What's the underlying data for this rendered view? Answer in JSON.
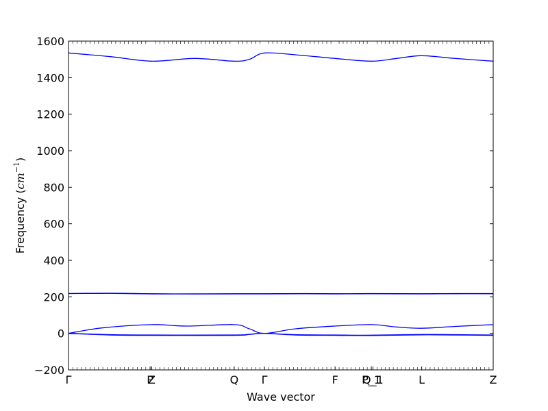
{
  "chart_data": {
    "type": "line",
    "xlabel": "Wave vector",
    "ylabel": "Frequency",
    "ylabel_unit_base": "cm",
    "ylabel_unit_exp": "−1",
    "ylim": [
      -200,
      1600
    ],
    "yticks": [
      -200,
      0,
      200,
      400,
      600,
      800,
      1000,
      1200,
      1400,
      1600
    ],
    "xlim": [
      0,
      5.05
    ],
    "xticks": [
      {
        "x": 0.0,
        "label": "Γ"
      },
      {
        "x": 0.97,
        "label": "P"
      },
      {
        "x": 0.99,
        "label": "Z"
      },
      {
        "x": 1.97,
        "label": "Q"
      },
      {
        "x": 2.33,
        "label": "Γ"
      },
      {
        "x": 3.17,
        "label": "F"
      },
      {
        "x": 3.6,
        "label": "P_1"
      },
      {
        "x": 3.62,
        "label": "Q_1"
      },
      {
        "x": 4.2,
        "label": "L"
      },
      {
        "x": 5.05,
        "label": "Z"
      }
    ],
    "series": [
      {
        "values": [
          [
            0,
            1535
          ],
          [
            0.5,
            1515
          ],
          [
            0.99,
            1490
          ],
          [
            1.5,
            1505
          ],
          [
            1.97,
            1490
          ],
          [
            2.15,
            1500
          ],
          [
            2.33,
            1535
          ],
          [
            2.7,
            1525
          ],
          [
            3.17,
            1505
          ],
          [
            3.6,
            1490
          ],
          [
            3.9,
            1505
          ],
          [
            4.2,
            1520
          ],
          [
            4.6,
            1505
          ],
          [
            5.05,
            1490
          ]
        ]
      },
      {
        "values": [
          [
            0,
            218
          ],
          [
            0.5,
            220
          ],
          [
            1.0,
            217
          ],
          [
            1.5,
            216
          ],
          [
            1.97,
            217
          ],
          [
            2.33,
            217
          ],
          [
            2.8,
            218
          ],
          [
            3.17,
            217
          ],
          [
            3.6,
            218
          ],
          [
            4.2,
            217
          ],
          [
            4.6,
            218
          ],
          [
            5.05,
            218
          ]
        ]
      },
      {
        "values": [
          [
            0,
            218
          ],
          [
            0.5,
            219
          ],
          [
            1.0,
            216
          ],
          [
            1.5,
            216
          ],
          [
            1.97,
            216
          ],
          [
            2.33,
            216
          ],
          [
            2.8,
            217
          ],
          [
            3.17,
            216
          ],
          [
            3.6,
            217
          ],
          [
            4.2,
            216
          ],
          [
            4.6,
            217
          ],
          [
            5.05,
            217
          ]
        ]
      },
      {
        "values": [
          [
            0,
            0
          ],
          [
            0.4,
            30
          ],
          [
            0.99,
            48
          ],
          [
            1.4,
            40
          ],
          [
            1.97,
            48
          ],
          [
            2.15,
            25
          ],
          [
            2.33,
            0
          ],
          [
            2.7,
            25
          ],
          [
            3.17,
            40
          ],
          [
            3.6,
            48
          ],
          [
            3.9,
            35
          ],
          [
            4.2,
            28
          ],
          [
            4.6,
            38
          ],
          [
            5.05,
            48
          ]
        ]
      },
      {
        "values": [
          [
            0,
            0
          ],
          [
            0.5,
            -7
          ],
          [
            1.0,
            -9
          ],
          [
            1.97,
            -9
          ],
          [
            2.15,
            -5
          ],
          [
            2.33,
            0
          ],
          [
            2.7,
            -7
          ],
          [
            3.17,
            -9
          ],
          [
            3.6,
            -10
          ],
          [
            4.2,
            -6
          ],
          [
            4.6,
            -7
          ],
          [
            5.05,
            -9
          ]
        ]
      },
      {
        "values": [
          [
            0,
            0
          ],
          [
            0.5,
            -9
          ],
          [
            1.0,
            -11
          ],
          [
            1.97,
            -11
          ],
          [
            2.15,
            -6
          ],
          [
            2.33,
            0
          ],
          [
            2.7,
            -9
          ],
          [
            3.17,
            -11
          ],
          [
            3.6,
            -12
          ],
          [
            4.2,
            -8
          ],
          [
            4.6,
            -9
          ],
          [
            5.05,
            -11
          ]
        ]
      }
    ],
    "line_color": "#0000ff",
    "grid": false
  }
}
